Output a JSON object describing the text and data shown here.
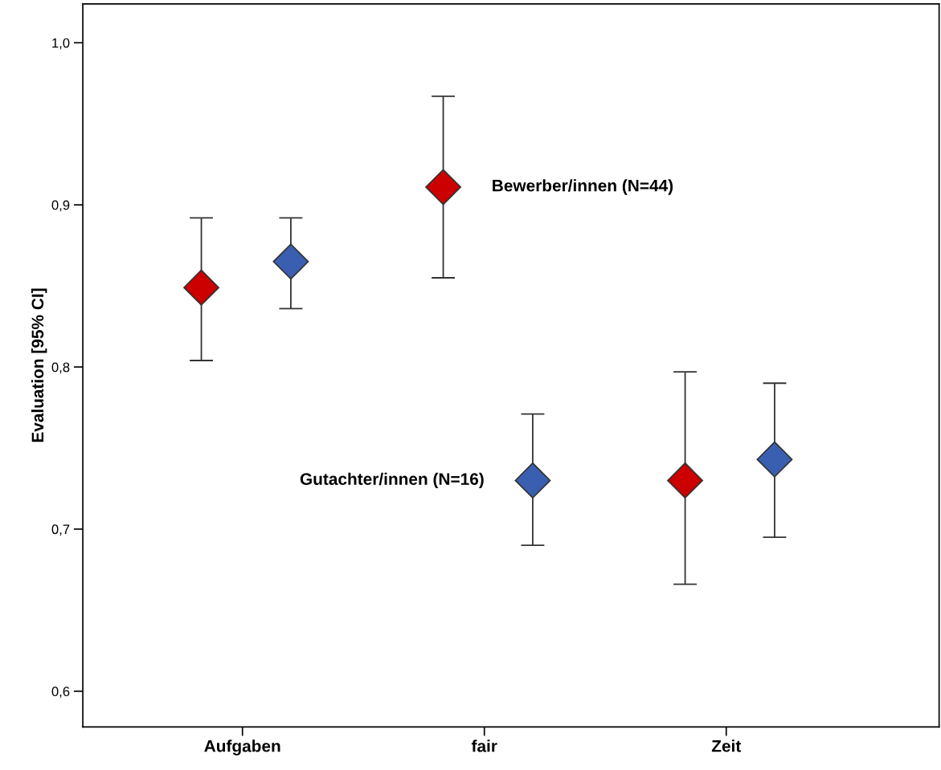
{
  "chart_data": {
    "type": "scatter",
    "ylabel": "Evaluation [95% CI]",
    "categories": [
      "Aufgaben",
      "fair",
      "Zeit"
    ],
    "series": [
      {
        "name": "Bewerber/innen (N=44)",
        "color": "#cc0000",
        "values": [
          0.849,
          0.911,
          0.73
        ],
        "errors": [
          [
            0.804,
            0.892
          ],
          [
            0.855,
            0.967
          ],
          [
            0.666,
            0.797
          ]
        ]
      },
      {
        "name": "Gutachter/innen (N=16)",
        "color": "#3a5fb0",
        "values": [
          0.865,
          0.73,
          0.743
        ],
        "errors": [
          [
            0.836,
            0.892
          ],
          [
            0.69,
            0.771
          ],
          [
            0.695,
            0.79
          ]
        ]
      }
    ],
    "ylim": [
      0.578,
      1.024
    ],
    "yticks": [
      {
        "value": 0.6,
        "label": "0,6"
      },
      {
        "value": 0.7,
        "label": "0,7"
      },
      {
        "value": 0.8,
        "label": "0,8"
      },
      {
        "value": 0.9,
        "label": "0,9"
      },
      {
        "value": 1.0,
        "label": "1,0"
      }
    ],
    "marker": "diamond",
    "grid": false,
    "legend": false
  }
}
